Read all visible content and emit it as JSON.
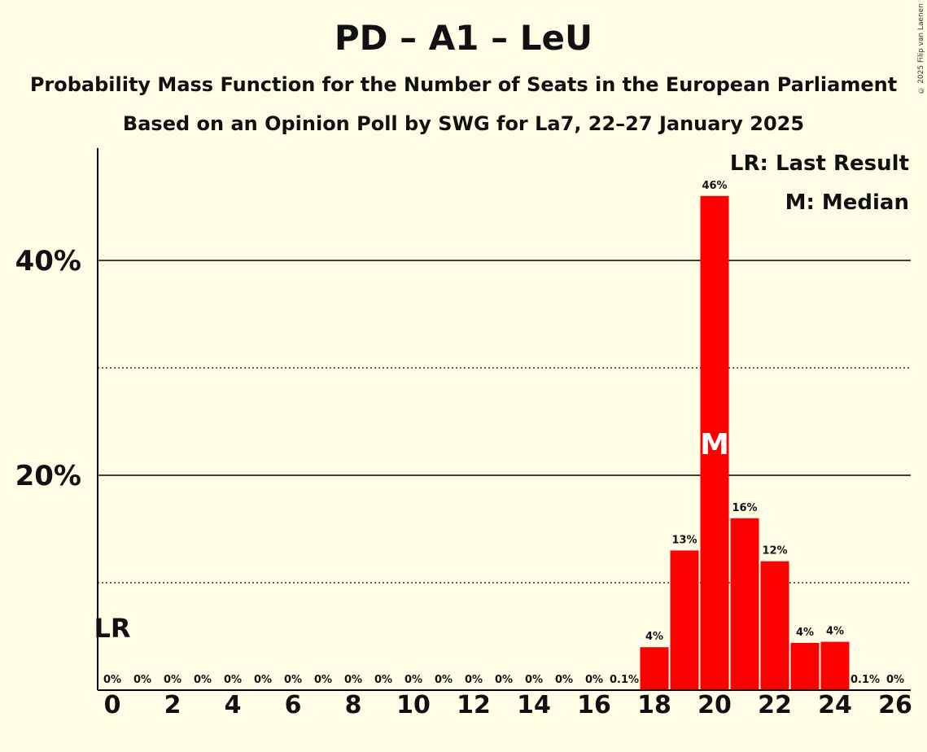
{
  "chart_data": {
    "type": "bar",
    "title": "PD – A1 – LeU",
    "subtitles": [
      "Probability Mass Function for the Number of Seats in the European Parliament",
      "Based on an Opinion Poll by SWG for La7, 22–27 January 2025"
    ],
    "copyright": "© 2025 Filip van Laenen",
    "legend": {
      "position": "top-right",
      "entries": [
        "LR: Last Result",
        "M: Median"
      ]
    },
    "x": [
      0,
      1,
      2,
      3,
      4,
      5,
      6,
      7,
      8,
      9,
      10,
      11,
      12,
      13,
      14,
      15,
      16,
      17,
      18,
      19,
      20,
      21,
      22,
      23,
      24,
      25,
      26
    ],
    "values": [
      0,
      0,
      0,
      0,
      0,
      0,
      0,
      0,
      0,
      0,
      0,
      0,
      0,
      0,
      0,
      0,
      0,
      0.1,
      4,
      13,
      46,
      16,
      12,
      4.4,
      4.5,
      0.1,
      0
    ],
    "value_labels": [
      "0%",
      "0%",
      "0%",
      "0%",
      "0%",
      "0%",
      "0%",
      "0%",
      "0%",
      "0%",
      "0%",
      "0%",
      "0%",
      "0%",
      "0%",
      "0%",
      "0%",
      "0.1%",
      "4%",
      "13%",
      "46%",
      "16%",
      "12%",
      "4%",
      "4%",
      "0.1%",
      "0%"
    ],
    "x_tick_labels": [
      "0",
      "2",
      "4",
      "6",
      "8",
      "10",
      "12",
      "14",
      "16",
      "18",
      "20",
      "22",
      "24",
      "26"
    ],
    "y_tick_labels": [
      "20%",
      "40%"
    ],
    "y_tick_values": [
      20,
      40
    ],
    "y_dotted_gridlines": [
      10,
      30
    ],
    "ylim": [
      0,
      50
    ],
    "last_result_seat": 0,
    "last_result_label": "LR",
    "median_seat": 20,
    "median_label": "M",
    "colors": {
      "bar": "#ff0000",
      "background": "#fffde6",
      "axis": "#000000"
    }
  }
}
